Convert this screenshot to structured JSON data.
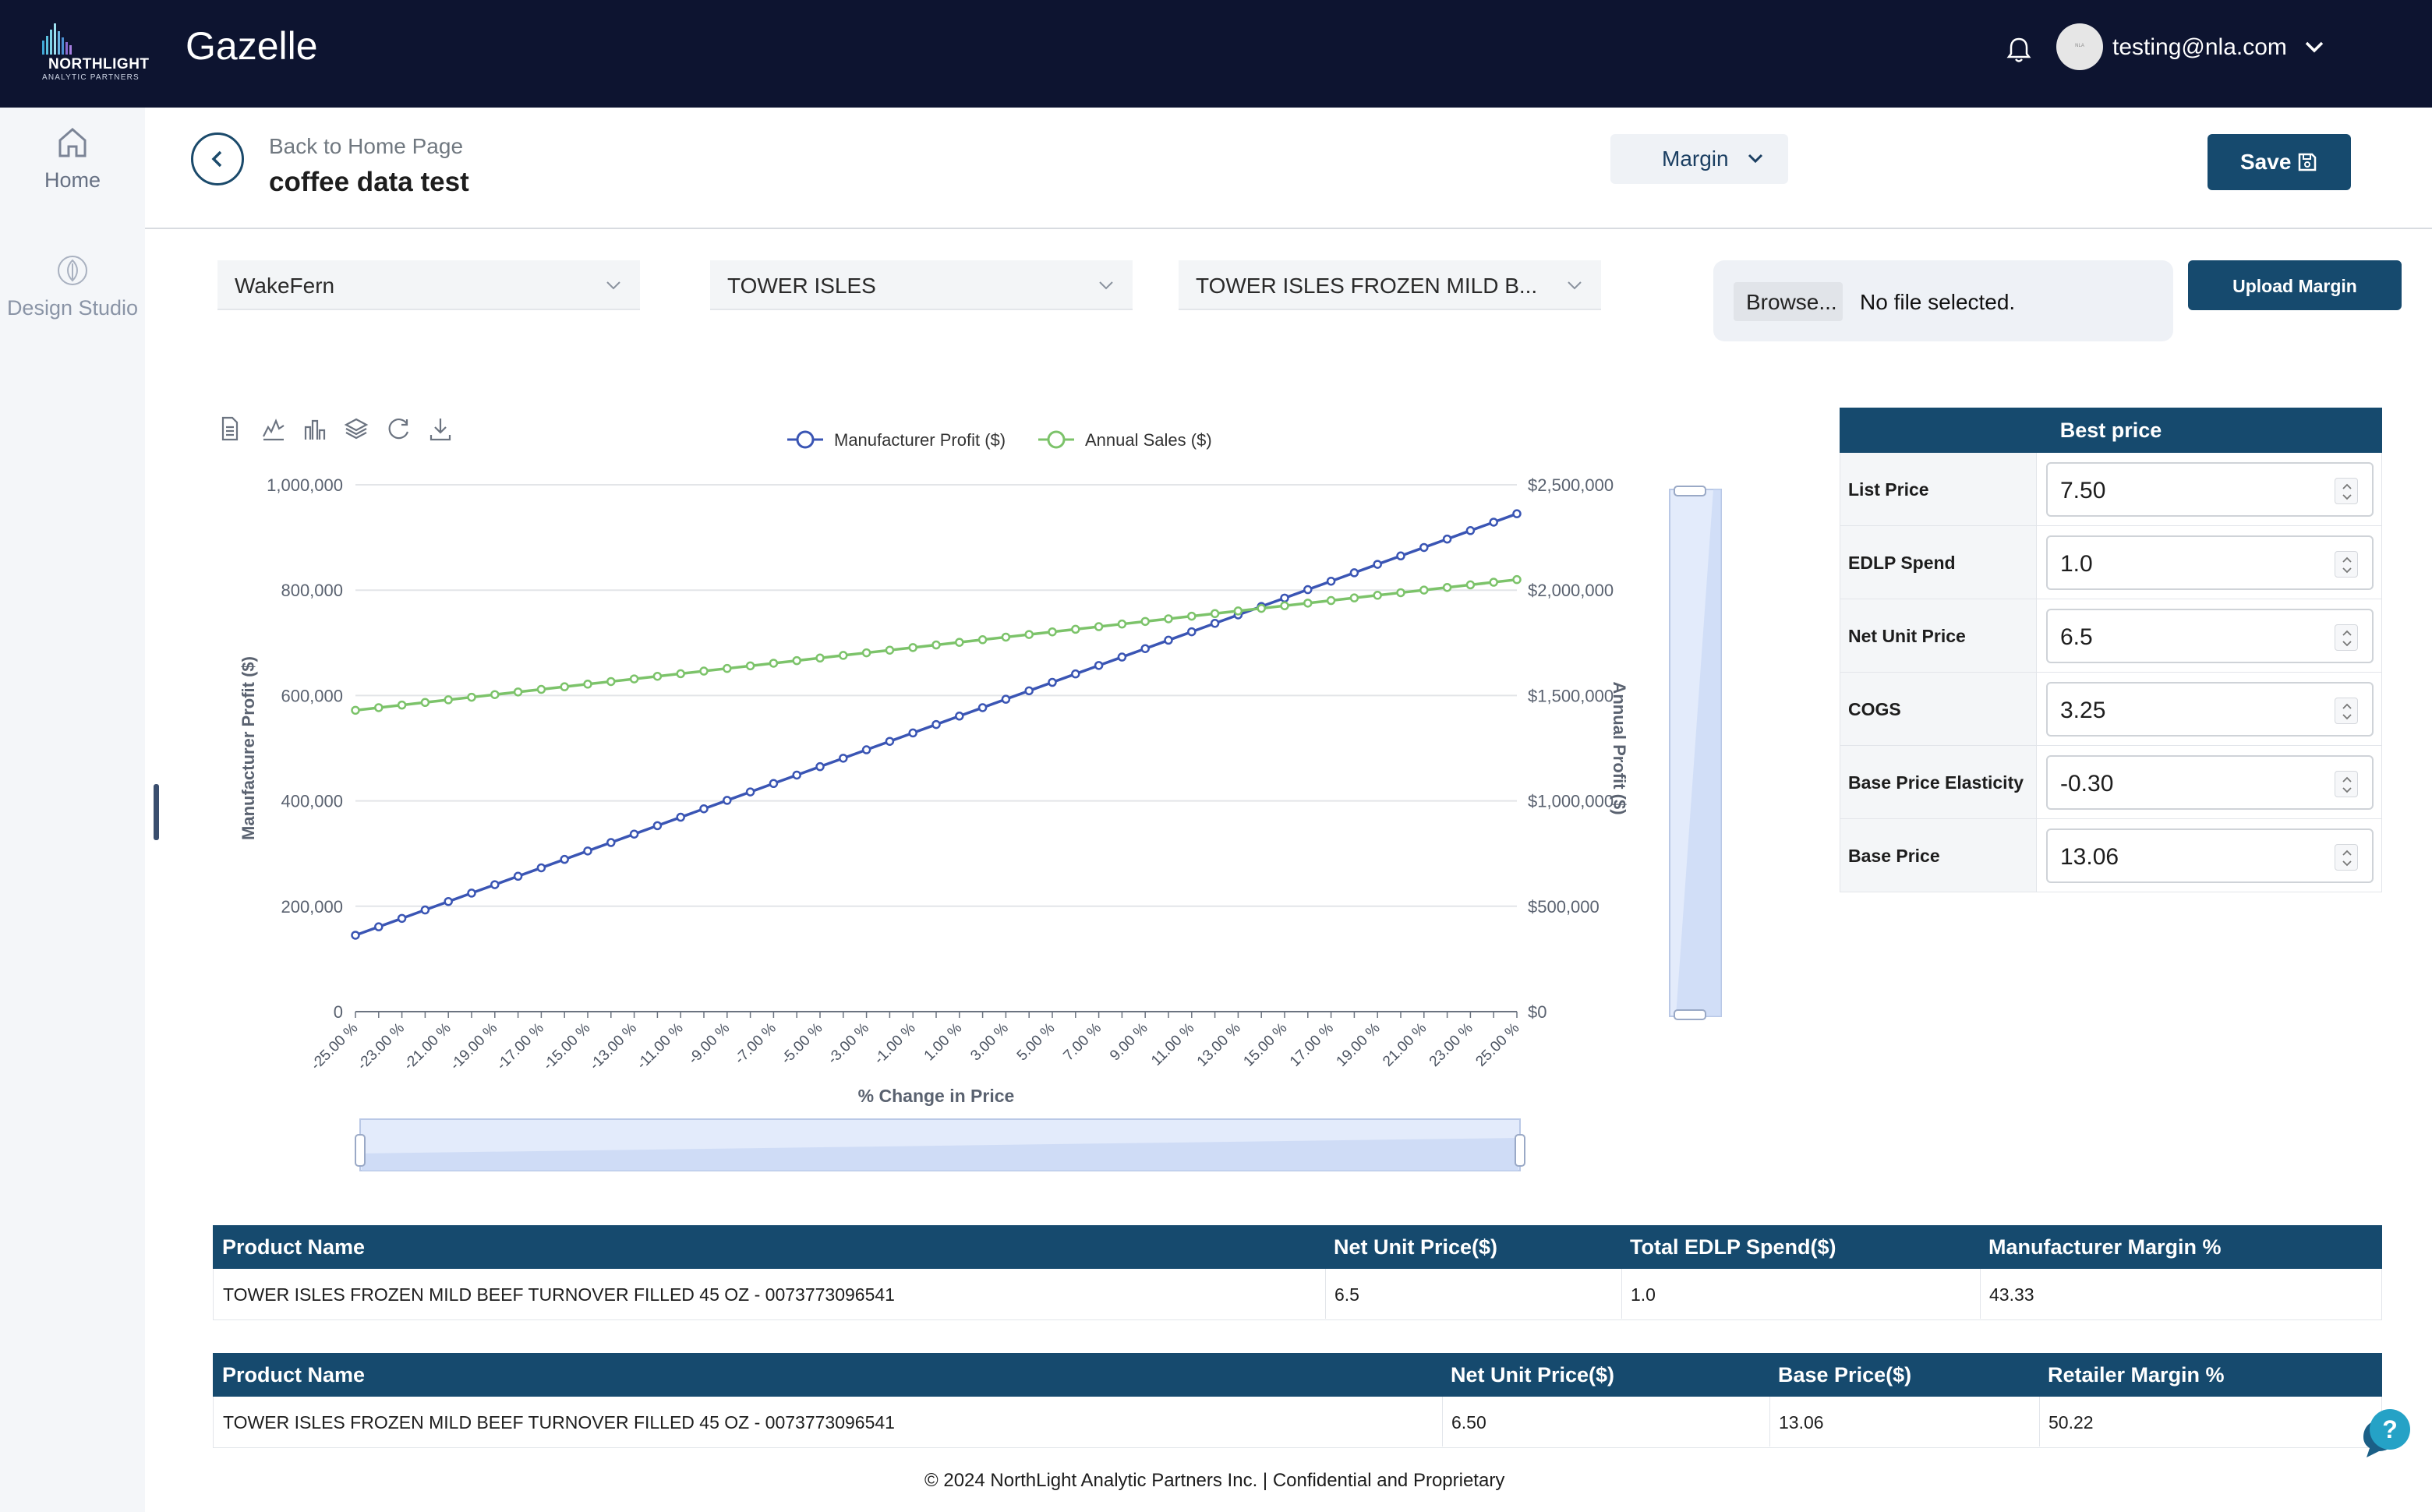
{
  "header": {
    "logo_name": "NORTHLIGHT",
    "logo_sub": "ANALYTIC PARTNERS",
    "app_title": "Gazelle",
    "user_email": "testing@nla.com",
    "avatar_text": "NLA"
  },
  "sidebar": {
    "items": [
      {
        "label": "Home",
        "icon": "home-icon"
      },
      {
        "label": "Design Studio",
        "icon": "leaf-icon"
      }
    ]
  },
  "page": {
    "back_label": "Back to Home Page",
    "title": "coffee data test",
    "view_select": "Margin",
    "save_label": "Save"
  },
  "filters": {
    "retailer": "WakeFern",
    "brand": "TOWER ISLES",
    "product": "TOWER ISLES FROZEN MILD B...",
    "browse_label": "Browse...",
    "file_status": "No file selected.",
    "upload_label": "Upload Margin"
  },
  "chart_data": {
    "type": "line",
    "xlabel": "% Change in Price",
    "ylabel_left": "Manufacturer Profit ($)",
    "ylabel_right": "Annual Profit ($)",
    "y_left_lim": [
      0,
      1000000
    ],
    "y_right_lim": [
      0,
      2500000
    ],
    "y_left_ticks": [
      "0",
      "200,000",
      "400,000",
      "600,000",
      "800,000",
      "1,000,000"
    ],
    "y_right_ticks": [
      "$0",
      "$500,000",
      "$1,000,000",
      "$1,500,000",
      "$2,000,000",
      "$2,500,000"
    ],
    "x_range": [
      -25,
      25
    ],
    "x_step": 1,
    "x_tick_labels": [
      "-25.00 %",
      "-23.00 %",
      "-21.00 %",
      "-19.00 %",
      "-17.00 %",
      "-15.00 %",
      "-13.00 %",
      "-11.00 %",
      "-9.00 %",
      "-7.00 %",
      "-5.00 %",
      "-3.00 %",
      "-1.00 %",
      "1.00 %",
      "3.00 %",
      "5.00 %",
      "7.00 %",
      "9.00 %",
      "11.00 %",
      "13.00 %",
      "15.00 %",
      "17.00 %",
      "19.00 %",
      "21.00 %",
      "23.00 %",
      "25.00 %"
    ],
    "grid": true,
    "legend_position": "top-center",
    "series": [
      {
        "name": "Manufacturer Profit ($)",
        "axis": "left",
        "color": "#3a55b4",
        "start": 145000,
        "end": 945000
      },
      {
        "name": "Annual Sales ($)",
        "axis": "right",
        "color": "#7cc36a",
        "start": 1430000,
        "end": 2050000
      }
    ],
    "toolbox_icons": [
      "data-view-icon",
      "line-chart-icon",
      "bar-chart-icon",
      "stack-icon",
      "restore-icon",
      "download-icon"
    ]
  },
  "best_price": {
    "title": "Best price",
    "rows": [
      {
        "label": "List Price",
        "value": "7.50"
      },
      {
        "label": "EDLP Spend",
        "value": "1.0"
      },
      {
        "label": "Net Unit Price",
        "value": "6.5"
      },
      {
        "label": "COGS",
        "value": "3.25"
      },
      {
        "label": "Base Price Elasticity",
        "value": "-0.30"
      },
      {
        "label": "Base Price",
        "value": "13.06"
      }
    ]
  },
  "manufacturer_table": {
    "headers": [
      "Product Name",
      "Net Unit Price($)",
      "Total EDLP Spend($)",
      "Manufacturer Margin %"
    ],
    "rows": [
      [
        "TOWER ISLES FROZEN MILD BEEF TURNOVER FILLED 45 OZ - 0073773096541",
        "6.5",
        "1.0",
        "43.33"
      ]
    ]
  },
  "retailer_table": {
    "headers": [
      "Product Name",
      "Net Unit Price($)",
      "Base Price($)",
      "Retailer Margin %"
    ],
    "rows": [
      [
        "TOWER ISLES FROZEN MILD BEEF TURNOVER FILLED 45 OZ - 0073773096541",
        "6.50",
        "13.06",
        "50.22"
      ]
    ]
  },
  "footer": "© 2024 NorthLight Analytic Partners Inc. | Confidential and Proprietary"
}
